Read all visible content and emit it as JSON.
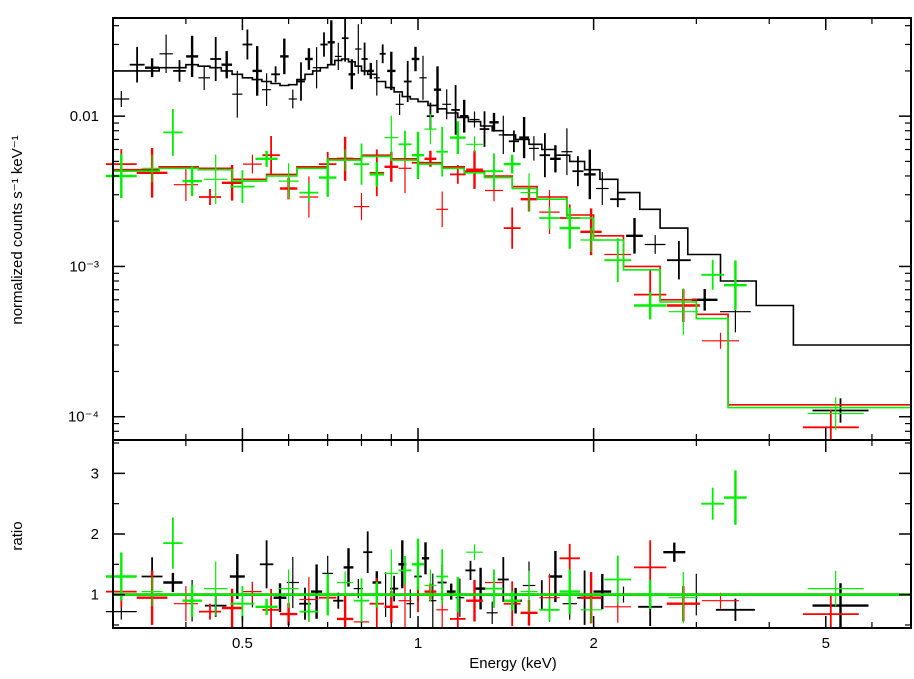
{
  "chart_data": [
    {
      "type": "scatter",
      "panel": "spectrum",
      "xlabel": "Energy (keV)",
      "ylabel": "normalized counts s⁻¹ keV⁻¹",
      "xscale": "log",
      "yscale": "log",
      "xlim": [
        0.3,
        7.0
      ],
      "ylim": [
        7e-05,
        0.045
      ],
      "ytick_labels": [
        {
          "value": 0.01,
          "label": "0.01"
        },
        {
          "value": 0.001,
          "label": "10⁻³"
        },
        {
          "value": 0.0001,
          "label": "10⁻⁴"
        }
      ],
      "series": [
        {
          "color": "#000000",
          "x": [
            0.31,
            0.33,
            0.35,
            0.37,
            0.39,
            0.41,
            0.43,
            0.45,
            0.47,
            0.49,
            0.51,
            0.53,
            0.55,
            0.57,
            0.59,
            0.61,
            0.63,
            0.65,
            0.67,
            0.69,
            0.71,
            0.73,
            0.75,
            0.77,
            0.79,
            0.81,
            0.83,
            0.85,
            0.87,
            0.9,
            0.93,
            0.96,
            0.99,
            1.02,
            1.05,
            1.08,
            1.12,
            1.16,
            1.2,
            1.25,
            1.3,
            1.35,
            1.4,
            1.46,
            1.52,
            1.58,
            1.65,
            1.72,
            1.8,
            1.88,
            1.97,
            2.07,
            2.2,
            2.35,
            2.55,
            2.8,
            3.1,
            3.5,
            5.3
          ],
          "y": [
            0.013,
            0.022,
            0.021,
            0.026,
            0.02,
            0.025,
            0.018,
            0.024,
            0.022,
            0.014,
            0.03,
            0.02,
            0.015,
            0.019,
            0.025,
            0.013,
            0.017,
            0.024,
            0.021,
            0.03,
            0.031,
            0.025,
            0.033,
            0.019,
            0.028,
            0.024,
            0.02,
            0.018,
            0.026,
            0.02,
            0.012,
            0.017,
            0.024,
            0.018,
            0.01,
            0.015,
            0.012,
            0.011,
            0.01,
            0.0095,
            0.0082,
            0.0091,
            0.0075,
            0.0068,
            0.0072,
            0.0061,
            0.0055,
            0.0052,
            0.0058,
            0.0043,
            0.0041,
            0.0033,
            0.0028,
            0.0016,
            0.0014,
            0.0011,
            0.0006,
            0.0005,
            0.00011
          ],
          "model_x": [
            0.3,
            0.33,
            0.36,
            0.38,
            0.4,
            0.42,
            0.44,
            0.46,
            0.48,
            0.5,
            0.52,
            0.54,
            0.56,
            0.58,
            0.6,
            0.62,
            0.64,
            0.66,
            0.68,
            0.7,
            0.72,
            0.74,
            0.76,
            0.78,
            0.8,
            0.82,
            0.85,
            0.88,
            0.91,
            0.94,
            0.97,
            1.0,
            1.04,
            1.08,
            1.12,
            1.17,
            1.22,
            1.28,
            1.34,
            1.4,
            1.47,
            1.55,
            1.63,
            1.72,
            1.82,
            1.93,
            2.05,
            2.2,
            2.4,
            2.6,
            2.9,
            3.3,
            3.8,
            4.4,
            7.0
          ],
          "model_y": [
            0.02,
            0.02,
            0.021,
            0.021,
            0.022,
            0.0215,
            0.021,
            0.02,
            0.019,
            0.018,
            0.0175,
            0.017,
            0.0165,
            0.016,
            0.0162,
            0.0175,
            0.019,
            0.02,
            0.021,
            0.022,
            0.0235,
            0.024,
            0.023,
            0.0215,
            0.02,
            0.019,
            0.017,
            0.0155,
            0.0145,
            0.0135,
            0.013,
            0.0125,
            0.0118,
            0.0112,
            0.0105,
            0.0098,
            0.0092,
            0.0086,
            0.008,
            0.0075,
            0.007,
            0.0065,
            0.006,
            0.0055,
            0.005,
            0.0044,
            0.0038,
            0.0031,
            0.0024,
            0.0018,
            0.0012,
            0.0008,
            0.00055,
            0.0003,
            0.00022
          ]
        },
        {
          "color": "#ff0000",
          "x": [
            0.31,
            0.35,
            0.4,
            0.44,
            0.48,
            0.52,
            0.56,
            0.6,
            0.65,
            0.7,
            0.75,
            0.8,
            0.85,
            0.9,
            0.95,
            1.0,
            1.05,
            1.1,
            1.17,
            1.25,
            1.35,
            1.45,
            1.55,
            1.68,
            1.82,
            1.98,
            2.2,
            2.5,
            2.85,
            3.3,
            5.1
          ],
          "y": [
            0.0048,
            0.0042,
            0.0035,
            0.0029,
            0.0036,
            0.0048,
            0.0055,
            0.0033,
            0.0029,
            0.0048,
            0.0052,
            0.0025,
            0.0042,
            0.0046,
            0.0045,
            0.0049,
            0.0052,
            0.0024,
            0.0041,
            0.0044,
            0.0032,
            0.0018,
            0.0028,
            0.0023,
            0.0021,
            0.0017,
            0.0012,
            0.00065,
            0.00055,
            0.00032,
            8.5e-05
          ],
          "model_x": [
            0.3,
            0.36,
            0.42,
            0.48,
            0.55,
            0.62,
            0.7,
            0.8,
            0.9,
            1.0,
            1.1,
            1.2,
            1.3,
            1.45,
            1.6,
            1.8,
            2.0,
            2.25,
            2.6,
            3.0,
            3.4,
            7.0
          ],
          "model_y": [
            0.0044,
            0.0046,
            0.0045,
            0.0038,
            0.0041,
            0.0046,
            0.0052,
            0.0055,
            0.0052,
            0.0049,
            0.0046,
            0.0043,
            0.004,
            0.0034,
            0.0029,
            0.0022,
            0.0016,
            0.001,
            0.0006,
            0.00048,
            0.00012,
            0.00012
          ]
        },
        {
          "color": "#00ee00",
          "x": [
            0.31,
            0.35,
            0.38,
            0.41,
            0.45,
            0.5,
            0.55,
            0.6,
            0.65,
            0.7,
            0.75,
            0.8,
            0.85,
            0.9,
            0.95,
            1.0,
            1.05,
            1.1,
            1.17,
            1.25,
            1.35,
            1.45,
            1.55,
            1.68,
            1.82,
            1.98,
            2.2,
            2.5,
            2.85,
            3.2,
            3.5,
            5.2
          ],
          "y": [
            0.004,
            0.0045,
            0.0078,
            0.0037,
            0.0038,
            0.0034,
            0.0052,
            0.0037,
            0.0031,
            0.0039,
            0.0051,
            0.0048,
            0.0041,
            0.0072,
            0.0065,
            0.0055,
            0.0082,
            0.0058,
            0.0072,
            0.0065,
            0.0043,
            0.0048,
            0.0031,
            0.0021,
            0.0018,
            0.0015,
            0.0011,
            0.00055,
            0.0005,
            0.00088,
            0.00075,
            0.000105
          ],
          "model_x": [
            0.3,
            0.36,
            0.42,
            0.48,
            0.55,
            0.62,
            0.7,
            0.8,
            0.9,
            1.0,
            1.1,
            1.2,
            1.3,
            1.45,
            1.6,
            1.8,
            2.0,
            2.25,
            2.6,
            3.0,
            3.4,
            7.0
          ],
          "model_y": [
            0.0043,
            0.0045,
            0.0044,
            0.0037,
            0.004,
            0.0045,
            0.0051,
            0.0054,
            0.0051,
            0.0048,
            0.0045,
            0.0042,
            0.0039,
            0.0033,
            0.0028,
            0.0021,
            0.0015,
            0.00095,
            0.00058,
            0.00045,
            0.000115,
            0.000115
          ]
        }
      ]
    },
    {
      "type": "scatter",
      "panel": "ratio",
      "xlabel": "Energy (keV)",
      "ylabel": "ratio",
      "xscale": "log",
      "xlim": [
        0.3,
        7.0
      ],
      "ylim": [
        0.45,
        3.55
      ],
      "x_ticks": [
        0.5,
        1,
        2,
        5
      ],
      "x_tick_labels": [
        "0.5",
        "1",
        "2",
        "5"
      ],
      "y_ticks": [
        1,
        2,
        3
      ],
      "y_tick_labels": [
        "1",
        "2",
        "3"
      ],
      "series": [
        {
          "color": "#000000",
          "x": [
            0.31,
            0.35,
            0.38,
            0.41,
            0.45,
            0.49,
            0.52,
            0.55,
            0.58,
            0.61,
            0.64,
            0.67,
            0.7,
            0.73,
            0.76,
            0.79,
            0.82,
            0.85,
            0.88,
            0.91,
            0.94,
            0.97,
            1.0,
            1.03,
            1.06,
            1.1,
            1.14,
            1.18,
            1.23,
            1.28,
            1.34,
            1.4,
            1.47,
            1.55,
            1.63,
            1.72,
            1.82,
            1.93,
            2.07,
            2.25,
            2.5,
            2.75,
            3.0,
            3.5,
            5.3
          ],
          "y": [
            0.72,
            1.3,
            1.2,
            0.9,
            0.82,
            1.3,
            1.0,
            1.5,
            0.95,
            1.2,
            0.85,
            1.05,
            1.35,
            0.9,
            1.45,
            1.1,
            1.7,
            1.2,
            1.0,
            1.1,
            1.5,
            0.85,
            1.3,
            1.6,
            0.9,
            1.2,
            1.05,
            0.95,
            1.4,
            1.1,
            0.7,
            1.25,
            0.9,
            1.15,
            1.0,
            1.3,
            0.85,
            0.95,
            1.05,
            1.0,
            0.8,
            1.7,
            1.0,
            0.75,
            0.82
          ],
          "model_x": [
            0.3,
            7.0
          ],
          "model_y": [
            1.0,
            1.0
          ]
        },
        {
          "color": "#ff0000",
          "x": [
            0.31,
            0.35,
            0.4,
            0.44,
            0.48,
            0.52,
            0.56,
            0.6,
            0.65,
            0.7,
            0.75,
            0.8,
            0.85,
            0.9,
            0.95,
            1.0,
            1.05,
            1.1,
            1.17,
            1.25,
            1.35,
            1.45,
            1.55,
            1.68,
            1.82,
            1.98,
            2.2,
            2.5,
            2.85,
            3.3,
            5.1
          ],
          "y": [
            1.05,
            0.95,
            0.85,
            0.72,
            0.78,
            1.05,
            0.75,
            0.68,
            0.92,
            0.95,
            0.6,
            0.55,
            0.85,
            0.8,
            0.9,
            1.0,
            1.05,
            0.75,
            0.6,
            0.9,
            1.2,
            0.85,
            0.7,
            0.95,
            1.6,
            0.95,
            0.8,
            1.45,
            0.85,
            0.9,
            0.68
          ],
          "model_x": [
            0.3,
            7.0
          ],
          "model_y": [
            1.0,
            1.0
          ]
        },
        {
          "color": "#00ee00",
          "x": [
            0.31,
            0.35,
            0.38,
            0.41,
            0.45,
            0.5,
            0.55,
            0.6,
            0.65,
            0.7,
            0.75,
            0.8,
            0.85,
            0.9,
            0.95,
            1.0,
            1.05,
            1.1,
            1.17,
            1.25,
            1.35,
            1.45,
            1.55,
            1.68,
            1.82,
            1.98,
            2.2,
            2.5,
            2.85,
            3.2,
            3.5,
            5.2
          ],
          "y": [
            1.3,
            1.05,
            1.85,
            0.9,
            1.1,
            0.85,
            0.8,
            1.1,
            0.72,
            1.0,
            1.2,
            0.9,
            1.0,
            1.35,
            1.4,
            1.5,
            1.15,
            1.3,
            1.0,
            1.7,
            1.1,
            0.9,
            1.05,
            0.75,
            1.05,
            0.75,
            1.25,
            1.0,
            0.95,
            2.5,
            2.6,
            1.1
          ],
          "model_x": [
            0.3,
            7.0
          ],
          "model_y": [
            1.0,
            1.0
          ]
        }
      ]
    }
  ]
}
